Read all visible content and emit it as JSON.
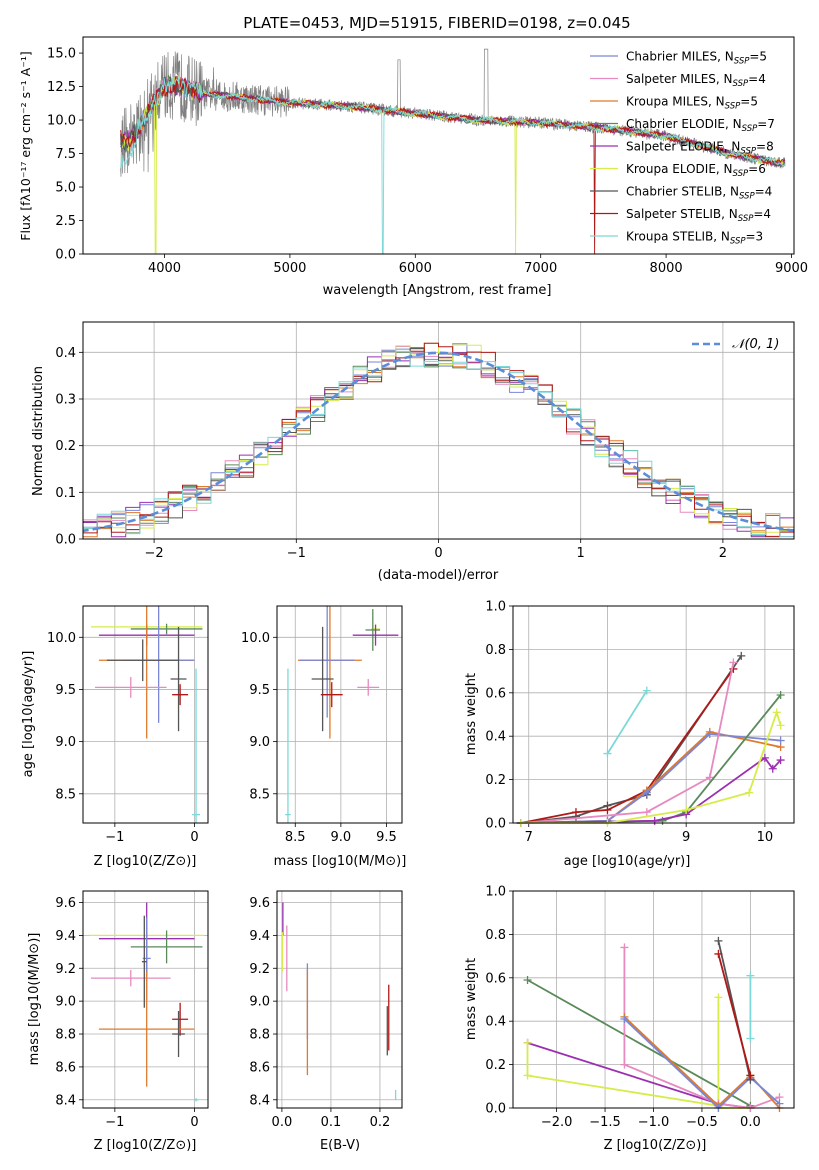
{
  "colors": {
    "Chabrier MILES": "#7b86d6",
    "Salpeter MILES": "#e68ac0",
    "Kroupa MILES": "#e07a2a",
    "Chabrier ELODIE": "#5a8a5a",
    "Salpeter ELODIE": "#9a30b0",
    "Kroupa ELODIE": "#d7ec4a",
    "Chabrier STELIB": "#555555",
    "Salpeter STELIB": "#b01818",
    "Kroupa STELIB": "#7dd8d8",
    "data": "#808080",
    "gaussian": "#5b8dd9",
    "grid": "#b0b0b0"
  },
  "chart_data": [
    {
      "id": "spectrum",
      "type": "line",
      "title": "PLATE=0453, MJD=51915, FIBERID=0198, z=0.045",
      "xlabel": "wavelength [Angstrom, rest frame]",
      "ylabel": "Flux [fλ10⁻¹⁷ erg cm⁻² s⁻¹ A⁻¹]",
      "xlim": [
        3350,
        9020
      ],
      "ylim": [
        0,
        16.2
      ],
      "xticks": [
        4000,
        5000,
        6000,
        7000,
        8000,
        9000
      ],
      "yticks": [
        0.0,
        2.5,
        5.0,
        7.5,
        10.0,
        12.5,
        15.0
      ],
      "yticklabels": [
        "0.0",
        "2.5",
        "5.0",
        "7.5",
        "10.0",
        "12.5",
        "15.0"
      ],
      "legend_position": "upper right",
      "legend": [
        {
          "label": "Chabrier MILES, N",
          "sub": "SSP",
          "suffix": "=5",
          "key": "Chabrier MILES"
        },
        {
          "label": "Salpeter MILES, N",
          "sub": "SSP",
          "suffix": "=4",
          "key": "Salpeter MILES"
        },
        {
          "label": "Kroupa MILES, N",
          "sub": "SSP",
          "suffix": "=5",
          "key": "Kroupa MILES"
        },
        {
          "label": "Chabrier ELODIE, N",
          "sub": "SSP",
          "suffix": "=7",
          "key": "Chabrier ELODIE"
        },
        {
          "label": "Salpeter ELODIE, N",
          "sub": "SSP",
          "suffix": "=8",
          "key": "Salpeter ELODIE"
        },
        {
          "label": "Kroupa ELODIE, N",
          "sub": "SSP",
          "suffix": "=6",
          "key": "Kroupa ELODIE"
        },
        {
          "label": "Chabrier STELIB, N",
          "sub": "SSP",
          "suffix": "=4",
          "key": "Chabrier STELIB"
        },
        {
          "label": "Salpeter STELIB, N",
          "sub": "SSP",
          "suffix": "=4",
          "key": "Salpeter STELIB"
        },
        {
          "label": "Kroupa STELIB, N",
          "sub": "SSP",
          "suffix": "=3",
          "key": "Kroupa STELIB"
        }
      ],
      "continuum": {
        "x": [
          3650,
          3700,
          3800,
          3900,
          4000,
          4100,
          4200,
          4300,
          4500,
          4800,
          5000,
          5500,
          6000,
          6500,
          7000,
          7500,
          8000,
          8500,
          8900
        ],
        "y": [
          8.5,
          8.3,
          9.5,
          11.2,
          12.5,
          12.6,
          12.3,
          12.0,
          11.8,
          11.5,
          11.3,
          11.0,
          10.5,
          10.0,
          9.8,
          9.4,
          8.8,
          7.5,
          6.8
        ]
      },
      "dips": [
        {
          "x": 3930,
          "y": 0.0,
          "series": "Kroupa ELODIE"
        },
        {
          "x": 5740,
          "y": 0.0,
          "series": "Kroupa STELIB"
        },
        {
          "x": 6800,
          "y": 0.0,
          "series": "Kroupa ELODIE"
        },
        {
          "x": 7430,
          "y": 0.0,
          "series": "Salpeter STELIB"
        }
      ]
    },
    {
      "id": "residuals",
      "type": "line",
      "xlabel": "(data-model)/error",
      "ylabel": "Normed distribution",
      "xlim": [
        -2.5,
        2.5
      ],
      "ylim": [
        0,
        0.465
      ],
      "xticks": [
        -2,
        -1,
        0,
        1,
        2
      ],
      "xticklabels": [
        "−2",
        "−1",
        "0",
        "1",
        "2"
      ],
      "yticks": [
        0.0,
        0.1,
        0.2,
        0.3,
        0.4
      ],
      "yticklabels": [
        "0.0",
        "0.1",
        "0.2",
        "0.3",
        "0.4"
      ],
      "grid": true,
      "legend_position": "upper right",
      "legend": [
        {
          "label": "𝒩(0, 1)",
          "key": "gaussian"
        }
      ]
    },
    {
      "id": "age-vs-Z",
      "type": "scatter",
      "xlabel": "Z [log10(Z/Z⊙)]",
      "ylabel": "age  [log10(age/yr)]",
      "xlim": [
        -1.4,
        0.17
      ],
      "ylim": [
        8.22,
        10.3
      ],
      "xticks": [
        -1,
        0
      ],
      "xticklabels": [
        "−1",
        "0"
      ],
      "yticks": [
        8.5,
        9.0,
        9.5,
        10.0
      ],
      "yticklabels": [
        "8.5",
        "9.0",
        "9.5",
        "10.0"
      ],
      "points": [
        {
          "series": "Kroupa ELODIE",
          "x": -0.6,
          "y": 10.1,
          "xerr": 0.7,
          "yerr": 0.03
        },
        {
          "series": "Chabrier ELODIE",
          "x": -0.35,
          "y": 10.08,
          "xerr": 0.45,
          "yerr": 0.05
        },
        {
          "series": "Salpeter ELODIE",
          "x": -0.6,
          "y": 10.02,
          "xerr": 0.6,
          "yerr": 0.1
        },
        {
          "series": "Kroupa MILES",
          "x": -0.6,
          "y": 9.78,
          "xerr": 0.6,
          "yerr": 0.75
        },
        {
          "series": "Chabrier MILES",
          "x": -0.45,
          "y": 9.78,
          "xerr": 0.45,
          "yerr": 0.6
        },
        {
          "series": "Chabrier STELIB",
          "x": -0.65,
          "y": 9.78,
          "xerr": 0.45,
          "yerr": 0.2
        },
        {
          "series": "Salpeter MILES",
          "x": -0.8,
          "y": 9.52,
          "xerr": 0.45,
          "yerr": 0.1
        },
        {
          "series": "Chabrier STELIB",
          "x": -0.2,
          "y": 9.6,
          "xerr": 0.1,
          "yerr": 0.5
        },
        {
          "series": "Salpeter STELIB",
          "x": -0.18,
          "y": 9.45,
          "xerr": 0.1,
          "yerr": 0.1
        },
        {
          "series": "Kroupa STELIB",
          "x": 0.02,
          "y": 8.3,
          "xerr": 0.05,
          "yerr": 1.4
        }
      ]
    },
    {
      "id": "age-vs-mass",
      "type": "scatter",
      "xlabel": "mass [log10(M/M⊙)]",
      "xlim": [
        8.3,
        9.67
      ],
      "ylim": [
        8.22,
        10.3
      ],
      "xticks": [
        8.5,
        9.0,
        9.5
      ],
      "xticklabels": [
        "8.5",
        "9.0",
        "9.5"
      ],
      "yticks": [
        8.5,
        9.0,
        9.5,
        10.0
      ],
      "yticklabels": [
        "8.5",
        "9.0",
        "9.5",
        "10.0"
      ],
      "points": [
        {
          "series": "Kroupa ELODIE",
          "x": 9.38,
          "y": 10.08,
          "xerr": 0.05,
          "yerr": 0.05
        },
        {
          "series": "Chabrier ELODIE",
          "x": 9.35,
          "y": 10.07,
          "xerr": 0.08,
          "yerr": 0.2
        },
        {
          "series": "Salpeter ELODIE",
          "x": 9.38,
          "y": 10.02,
          "xerr": 0.25,
          "yerr": 0.1
        },
        {
          "series": "Kroupa MILES",
          "x": 8.88,
          "y": 9.78,
          "xerr": 0.35,
          "yerr": 0.75
        },
        {
          "series": "Chabrier MILES",
          "x": 8.85,
          "y": 9.78,
          "xerr": 0.3,
          "yerr": 0.55
        },
        {
          "series": "Chabrier STELIB",
          "x": 8.8,
          "y": 9.6,
          "xerr": 0.12,
          "yerr": 0.5
        },
        {
          "series": "Salpeter MILES",
          "x": 9.3,
          "y": 9.52,
          "xerr": 0.12,
          "yerr": 0.08
        },
        {
          "series": "Salpeter STELIB",
          "x": 8.9,
          "y": 9.45,
          "xerr": 0.12,
          "yerr": 0.12
        },
        {
          "series": "Kroupa STELIB",
          "x": 8.42,
          "y": 8.3,
          "xerr": 0.03,
          "yerr": 1.4
        }
      ]
    },
    {
      "id": "weight-vs-age",
      "type": "line",
      "ylabel": "mass weight",
      "xlabel": "age  [log10(age/yr)]",
      "xlim": [
        6.8,
        10.37
      ],
      "ylim": [
        0.0,
        1.0
      ],
      "xticks": [
        7,
        8,
        9,
        10
      ],
      "xticklabels": [
        "7",
        "8",
        "9",
        "10"
      ],
      "yticks": [
        0.0,
        0.2,
        0.4,
        0.6,
        0.8,
        1.0
      ],
      "yticklabels": [
        "0.0",
        "0.2",
        "0.4",
        "0.6",
        "0.8",
        "1.0"
      ],
      "grid": true,
      "series": [
        {
          "name": "Kroupa STELIB",
          "x": [
            8.0,
            8.5
          ],
          "y": [
            0.32,
            0.61
          ]
        },
        {
          "name": "Chabrier STELIB",
          "x": [
            6.9,
            7.6,
            8.0,
            8.5,
            9.7
          ],
          "y": [
            0.0,
            0.03,
            0.08,
            0.13,
            0.77
          ]
        },
        {
          "name": "Salpeter STELIB",
          "x": [
            6.9,
            7.6,
            8.0,
            8.5,
            9.6
          ],
          "y": [
            0.0,
            0.05,
            0.06,
            0.15,
            0.71
          ]
        },
        {
          "name": "Kroupa MILES",
          "x": [
            6.9,
            8.0,
            8.5,
            9.3,
            10.2
          ],
          "y": [
            0.0,
            0.01,
            0.15,
            0.42,
            0.35
          ]
        },
        {
          "name": "Chabrier MILES",
          "x": [
            6.9,
            8.0,
            8.5,
            9.3,
            10.2
          ],
          "y": [
            0.0,
            0.01,
            0.14,
            0.41,
            0.38
          ]
        },
        {
          "name": "Salpeter MILES",
          "x": [
            6.9,
            8.5,
            9.3,
            9.6
          ],
          "y": [
            0.0,
            0.05,
            0.21,
            0.74
          ]
        },
        {
          "name": "Chabrier ELODIE",
          "x": [
            6.9,
            8.7,
            9.0,
            10.2
          ],
          "y": [
            0.0,
            0.01,
            0.05,
            0.59
          ]
        },
        {
          "name": "Salpeter ELODIE",
          "x": [
            6.9,
            8.6,
            9.0,
            10.0,
            10.1,
            10.2
          ],
          "y": [
            0.0,
            0.01,
            0.04,
            0.3,
            0.25,
            0.29
          ]
        },
        {
          "name": "Kroupa ELODIE",
          "x": [
            6.9,
            8.0,
            9.0,
            9.8,
            10.15,
            10.2
          ],
          "y": [
            0.0,
            0.0,
            0.06,
            0.14,
            0.51,
            0.45
          ]
        }
      ]
    },
    {
      "id": "mass-vs-Z",
      "type": "scatter",
      "ylabel": "mass [log10(M/M⊙)]",
      "xlabel": "Z [log10(Z/Z⊙)]",
      "xlim": [
        -1.4,
        0.17
      ],
      "ylim": [
        8.35,
        9.67
      ],
      "xticks": [
        -1,
        0
      ],
      "xticklabels": [
        "−1",
        "0"
      ],
      "yticks": [
        8.4,
        8.6,
        8.8,
        9.0,
        9.2,
        9.4,
        9.6
      ],
      "yticklabels": [
        "8.4",
        "8.6",
        "8.8",
        "9.0",
        "9.2",
        "9.4",
        "9.6"
      ],
      "points": [
        {
          "series": "Kroupa ELODIE",
          "x": -0.6,
          "y": 9.4,
          "xerr": 0.72,
          "yerr": 0.02
        },
        {
          "series": "Salpeter ELODIE",
          "x": -0.6,
          "y": 9.38,
          "xerr": 0.6,
          "yerr": 0.22
        },
        {
          "series": "Chabrier ELODIE",
          "x": -0.35,
          "y": 9.33,
          "xerr": 0.45,
          "yerr": 0.1
        },
        {
          "series": "Chabrier MILES",
          "x": -0.6,
          "y": 9.26,
          "xerr": 0.05,
          "yerr": 0.25
        },
        {
          "series": "Salpeter MILES",
          "x": -0.8,
          "y": 9.14,
          "xerr": 0.5,
          "yerr": 0.05
        },
        {
          "series": "Chabrier STELIB",
          "x": -0.63,
          "y": 9.24,
          "xerr": 0.03,
          "yerr": 0.28
        },
        {
          "series": "Salpeter STELIB",
          "x": -0.18,
          "y": 8.89,
          "xerr": 0.1,
          "yerr": 0.1
        },
        {
          "series": "Kroupa MILES",
          "x": -0.6,
          "y": 8.83,
          "xerr": 0.6,
          "yerr": 0.35
        },
        {
          "series": "Chabrier STELIB",
          "x": -0.2,
          "y": 8.8,
          "xerr": 0.08,
          "yerr": 0.14
        },
        {
          "series": "Kroupa STELIB",
          "x": 0.02,
          "y": 8.4,
          "xerr": 0.03,
          "yerr": 0.01
        }
      ]
    },
    {
      "id": "mass-vs-ebv",
      "type": "scatter",
      "xlabel": "E(B-V)",
      "xlim": [
        -0.01,
        0.245
      ],
      "ylim": [
        8.35,
        9.67
      ],
      "xticks": [
        0.0,
        0.1,
        0.2
      ],
      "xticklabels": [
        "0.0",
        "0.1",
        "0.2"
      ],
      "yticks": [
        8.4,
        8.6,
        8.8,
        9.0,
        9.2,
        9.4,
        9.6
      ],
      "yticklabels": [
        "8.4",
        "8.6",
        "8.8",
        "9.0",
        "9.2",
        "9.4",
        "9.6"
      ],
      "points": [
        {
          "series": "Salpeter ELODIE",
          "x": 0.002,
          "y": 9.5,
          "xerr": 0.0,
          "yerr": 0.1
        },
        {
          "series": "Kroupa ELODIE",
          "x": 0.001,
          "y": 9.3,
          "xerr": 0.0,
          "yerr": 0.12
        },
        {
          "series": "Salpeter MILES",
          "x": 0.01,
          "y": 9.26,
          "xerr": 0.0,
          "yerr": 0.2
        },
        {
          "series": "Chabrier MILES",
          "x": 0.052,
          "y": 9.0,
          "xerr": 0.0,
          "yerr": 0.23
        },
        {
          "series": "Kroupa MILES",
          "x": 0.052,
          "y": 8.87,
          "xerr": 0.0,
          "yerr": 0.32
        },
        {
          "series": "Salpeter STELIB",
          "x": 0.218,
          "y": 8.9,
          "xerr": 0.0,
          "yerr": 0.2
        },
        {
          "series": "Chabrier STELIB",
          "x": 0.215,
          "y": 8.82,
          "xerr": 0.0,
          "yerr": 0.15
        },
        {
          "series": "Kroupa STELIB",
          "x": 0.232,
          "y": 8.43,
          "xerr": 0.0,
          "yerr": 0.03
        }
      ]
    },
    {
      "id": "weight-vs-Z",
      "type": "line",
      "ylabel": "mass weight",
      "xlabel": "Z [log10(Z/Z⊙)]",
      "xlim": [
        -2.45,
        0.45
      ],
      "ylim": [
        0.0,
        1.0
      ],
      "xticks": [
        -2.0,
        -1.5,
        -1.0,
        -0.5,
        0.0
      ],
      "xticklabels": [
        "−2.0",
        "−1.5",
        "−1.0",
        "−0.5",
        "0.0"
      ],
      "yticks": [
        0.0,
        0.2,
        0.4,
        0.6,
        0.8,
        1.0
      ],
      "yticklabels": [
        "0.0",
        "0.2",
        "0.4",
        "0.6",
        "0.8",
        "1.0"
      ],
      "grid": true,
      "series": [
        {
          "name": "Chabrier ELODIE",
          "x": [
            -2.3,
            0.0
          ],
          "y": [
            0.59,
            0.01
          ]
        },
        {
          "name": "Salpeter ELODIE",
          "x": [
            -2.3,
            -0.33,
            0.0
          ],
          "y": [
            0.3,
            0.02,
            0.0
          ]
        },
        {
          "name": "Kroupa ELODIE",
          "x": [
            -2.3,
            -2.3,
            -0.33,
            -0.33,
            -0.33,
            0.0
          ],
          "y": [
            0.3,
            0.15,
            0.01,
            0.51,
            0.0,
            0.0
          ]
        },
        {
          "name": "Salpeter MILES",
          "x": [
            -1.3,
            -1.3,
            -0.33,
            0.0,
            0.3
          ],
          "y": [
            0.74,
            0.2,
            0.02,
            0.0,
            0.05
          ]
        },
        {
          "name": "Kroupa MILES",
          "x": [
            -1.3,
            -0.33,
            0.0,
            0.3
          ],
          "y": [
            0.42,
            0.01,
            0.15,
            0.0
          ]
        },
        {
          "name": "Chabrier MILES",
          "x": [
            -1.3,
            -0.33,
            0.0,
            0.3
          ],
          "y": [
            0.41,
            0.0,
            0.14,
            0.02
          ]
        },
        {
          "name": "Chabrier STELIB",
          "x": [
            -0.33,
            0.0
          ],
          "y": [
            0.77,
            0.13
          ]
        },
        {
          "name": "Salpeter STELIB",
          "x": [
            -0.33,
            0.0
          ],
          "y": [
            0.71,
            0.15
          ]
        },
        {
          "name": "Kroupa STELIB",
          "x": [
            0.0,
            0.0
          ],
          "y": [
            0.61,
            0.32
          ]
        }
      ]
    }
  ]
}
